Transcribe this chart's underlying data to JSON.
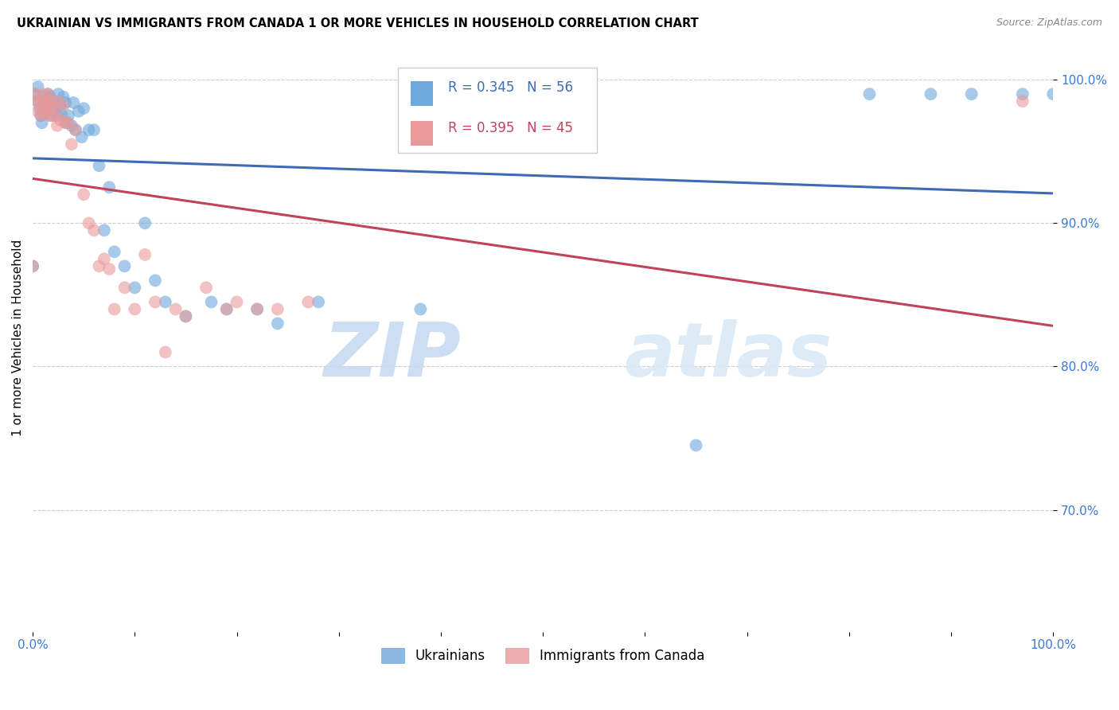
{
  "title": "UKRAINIAN VS IMMIGRANTS FROM CANADA 1 OR MORE VEHICLES IN HOUSEHOLD CORRELATION CHART",
  "source": "Source: ZipAtlas.com",
  "ylabel": "1 or more Vehicles in Household",
  "legend_labels": [
    "Ukrainians",
    "Immigrants from Canada"
  ],
  "blue_R": "R = 0.345",
  "blue_N": "N = 56",
  "pink_R": "R = 0.395",
  "pink_N": "N = 45",
  "blue_color": "#6fa8dc",
  "pink_color": "#ea9999",
  "blue_line_color": "#3d6bb5",
  "pink_line_color": "#c0435a",
  "watermark_zip": "ZIP",
  "watermark_atlas": "atlas",
  "xlim": [
    0,
    1.0
  ],
  "ylim": [
    0.615,
    1.025
  ],
  "blue_x": [
    0.0,
    0.002,
    0.005,
    0.005,
    0.007,
    0.008,
    0.009,
    0.01,
    0.01,
    0.012,
    0.013,
    0.015,
    0.015,
    0.017,
    0.018,
    0.02,
    0.02,
    0.022,
    0.024,
    0.025,
    0.027,
    0.028,
    0.03,
    0.032,
    0.033,
    0.035,
    0.038,
    0.04,
    0.042,
    0.045,
    0.048,
    0.05,
    0.055,
    0.06,
    0.065,
    0.07,
    0.075,
    0.08,
    0.09,
    0.1,
    0.11,
    0.12,
    0.13,
    0.15,
    0.175,
    0.19,
    0.22,
    0.24,
    0.28,
    0.38,
    0.65,
    0.82,
    0.88,
    0.92,
    0.97,
    1.0
  ],
  "blue_y": [
    0.87,
    0.99,
    0.995,
    0.985,
    0.98,
    0.975,
    0.97,
    0.988,
    0.982,
    0.985,
    0.978,
    0.99,
    0.983,
    0.988,
    0.975,
    0.985,
    0.978,
    0.982,
    0.975,
    0.99,
    0.982,
    0.976,
    0.988,
    0.984,
    0.97,
    0.975,
    0.968,
    0.984,
    0.965,
    0.978,
    0.96,
    0.98,
    0.965,
    0.965,
    0.94,
    0.895,
    0.925,
    0.88,
    0.87,
    0.855,
    0.9,
    0.86,
    0.845,
    0.835,
    0.845,
    0.84,
    0.84,
    0.83,
    0.845,
    0.84,
    0.745,
    0.99,
    0.99,
    0.99,
    0.99,
    0.99
  ],
  "pink_x": [
    0.0,
    0.002,
    0.004,
    0.005,
    0.007,
    0.008,
    0.01,
    0.011,
    0.012,
    0.013,
    0.015,
    0.016,
    0.017,
    0.018,
    0.02,
    0.022,
    0.024,
    0.025,
    0.027,
    0.03,
    0.032,
    0.035,
    0.038,
    0.042,
    0.05,
    0.055,
    0.06,
    0.065,
    0.07,
    0.075,
    0.08,
    0.09,
    0.1,
    0.11,
    0.12,
    0.13,
    0.14,
    0.15,
    0.17,
    0.19,
    0.2,
    0.22,
    0.24,
    0.27,
    0.97
  ],
  "pink_y": [
    0.87,
    0.99,
    0.985,
    0.978,
    0.983,
    0.975,
    0.99,
    0.982,
    0.976,
    0.985,
    0.99,
    0.98,
    0.975,
    0.985,
    0.98,
    0.975,
    0.968,
    0.985,
    0.972,
    0.982,
    0.97,
    0.97,
    0.955,
    0.965,
    0.92,
    0.9,
    0.895,
    0.87,
    0.875,
    0.868,
    0.84,
    0.855,
    0.84,
    0.878,
    0.845,
    0.81,
    0.84,
    0.835,
    0.855,
    0.84,
    0.845,
    0.84,
    0.84,
    0.845,
    0.985
  ]
}
